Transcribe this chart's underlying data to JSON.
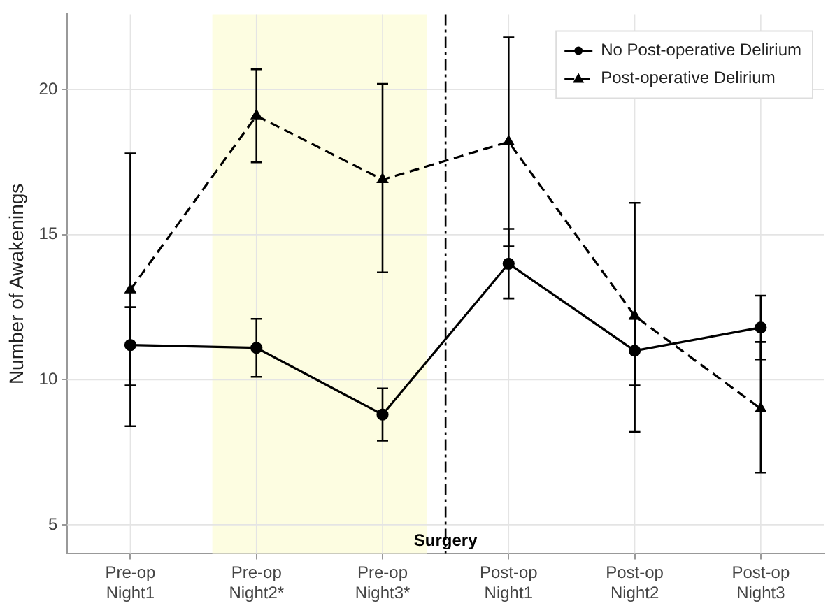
{
  "chart_data": {
    "type": "line",
    "ylabel": "Number of Awakenings",
    "categories": [
      "Pre-op Night1",
      "Pre-op Night2*",
      "Pre-op Night3*",
      "Post-op Night1",
      "Post-op Night2",
      "Post-op Night3"
    ],
    "ylim": [
      4,
      22.6
    ],
    "yticks": [
      5,
      10,
      15,
      20
    ],
    "series": [
      {
        "name": "No Post-operative Delirium",
        "color": "#000000",
        "marker": "circle",
        "line_style": "solid",
        "values": [
          11.2,
          11.1,
          8.8,
          14.0,
          11.0,
          11.8
        ],
        "errors": [
          [
            9.8,
            12.5
          ],
          [
            10.1,
            12.1
          ],
          [
            7.9,
            9.7
          ],
          [
            12.8,
            15.2
          ],
          [
            9.8,
            12.1
          ],
          [
            10.7,
            12.9
          ]
        ]
      },
      {
        "name": "Post-operative Delirium",
        "color": "#000000",
        "marker": "triangle",
        "line_style": "dashed",
        "values": [
          13.1,
          19.1,
          16.9,
          18.2,
          12.2,
          9.0
        ],
        "errors": [
          [
            8.4,
            17.8
          ],
          [
            17.5,
            20.7
          ],
          [
            13.7,
            20.2
          ],
          [
            14.6,
            21.8
          ],
          [
            8.2,
            16.1
          ],
          [
            6.8,
            11.3
          ]
        ]
      }
    ],
    "bands": [
      {
        "axis": "x",
        "from": "Pre-op Night2*",
        "to": "Pre-op Night3*",
        "color": "#fdfde1"
      }
    ],
    "ref_lines": [
      {
        "axis": "x",
        "value": "Post-op Night1",
        "label": "Surgery",
        "line_style": "dashed",
        "color": "#000000"
      }
    ],
    "grid": true,
    "legend": "top right"
  }
}
